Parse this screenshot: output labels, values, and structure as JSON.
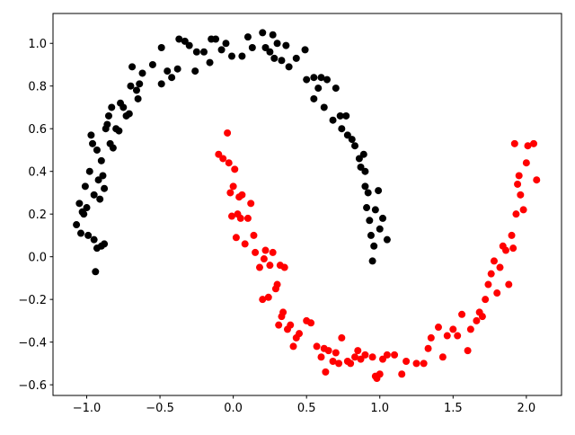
{
  "chart_data": {
    "type": "scatter",
    "xlim": [
      -1.23,
      2.24
    ],
    "ylim": [
      -0.65,
      1.14
    ],
    "xticks": [
      {
        "value": -1.0,
        "label": "−1.0"
      },
      {
        "value": -0.5,
        "label": "−0.5"
      },
      {
        "value": 0.0,
        "label": "0.0"
      },
      0.5,
      {
        "value": 1.0,
        "label": "1.0"
      },
      1.5,
      {
        "value": 2.0,
        "label": "2.0"
      }
    ],
    "yticks": [
      {
        "value": -0.6,
        "label": "−0.6"
      },
      {
        "value": -0.4,
        "label": "−0.4"
      },
      {
        "value": -0.2,
        "label": "−0.2"
      },
      {
        "value": 0.0,
        "label": "0.0"
      },
      0.2,
      0.4,
      0.6,
      0.8,
      {
        "value": 1.0,
        "label": "1.0"
      }
    ],
    "series": [
      {
        "color": "#000000",
        "x": [
          -1.07,
          -1.05,
          -1.04,
          -1.03,
          -1.02,
          -1.01,
          -1.0,
          -0.99,
          -0.98,
          -0.97,
          -0.96,
          -0.95,
          -0.95,
          -0.94,
          -0.93,
          -0.93,
          -0.92,
          -0.91,
          -0.9,
          -0.9,
          -0.89,
          -0.88,
          -0.88,
          -0.87,
          -0.86,
          -0.85,
          -0.84,
          -0.83,
          -0.82,
          -0.8,
          -0.78,
          -0.77,
          -0.75,
          -0.73,
          -0.71,
          -0.7,
          -0.69,
          -0.66,
          -0.65,
          -0.64,
          -0.62,
          -0.55,
          -0.49,
          -0.49,
          -0.45,
          -0.42,
          -0.38,
          -0.37,
          -0.33,
          -0.3,
          -0.26,
          -0.25,
          -0.2,
          -0.16,
          -0.15,
          -0.12,
          -0.08,
          -0.05,
          -0.01,
          0.06,
          0.1,
          0.13,
          0.2,
          0.22,
          0.25,
          0.27,
          0.28,
          0.3,
          0.33,
          0.36,
          0.38,
          0.43,
          0.49,
          0.5,
          0.55,
          0.55,
          0.58,
          0.6,
          0.62,
          0.64,
          0.68,
          0.7,
          0.73,
          0.74,
          0.77,
          0.78,
          0.81,
          0.83,
          0.86,
          0.87,
          0.89,
          0.9,
          0.9,
          0.91,
          0.92,
          0.93,
          0.94,
          0.95,
          0.96,
          0.97,
          0.99,
          1.0,
          1.02,
          1.05
        ],
        "y": [
          0.15,
          0.25,
          0.11,
          0.21,
          0.2,
          0.33,
          0.23,
          0.1,
          0.4,
          0.57,
          0.53,
          0.29,
          0.08,
          -0.07,
          0.04,
          0.5,
          0.36,
          0.27,
          0.05,
          0.45,
          0.38,
          0.06,
          0.32,
          0.6,
          0.62,
          0.66,
          0.53,
          0.7,
          0.51,
          0.6,
          0.59,
          0.72,
          0.7,
          0.66,
          0.67,
          0.8,
          0.89,
          0.78,
          0.74,
          0.81,
          0.86,
          0.9,
          0.98,
          0.81,
          0.87,
          0.84,
          0.88,
          1.02,
          1.01,
          0.99,
          0.87,
          0.96,
          0.96,
          0.91,
          1.02,
          1.02,
          0.97,
          1.0,
          0.94,
          0.94,
          1.03,
          0.98,
          1.05,
          0.98,
          0.96,
          1.04,
          0.93,
          1.0,
          0.92,
          0.99,
          0.89,
          0.93,
          0.97,
          0.83,
          0.74,
          0.84,
          0.79,
          0.84,
          0.7,
          0.83,
          0.64,
          0.79,
          0.66,
          0.6,
          0.66,
          0.57,
          0.55,
          0.52,
          0.46,
          0.42,
          0.48,
          0.4,
          0.33,
          0.23,
          0.3,
          0.17,
          0.1,
          -0.02,
          0.05,
          0.22,
          0.31,
          0.13,
          0.18,
          0.08
        ]
      },
      {
        "color": "#ff0000",
        "x": [
          -0.1,
          -0.07,
          -0.04,
          -0.03,
          -0.02,
          -0.01,
          0.0,
          0.01,
          0.02,
          0.03,
          0.04,
          0.05,
          0.06,
          0.08,
          0.1,
          0.12,
          0.14,
          0.15,
          0.18,
          0.2,
          0.21,
          0.22,
          0.24,
          0.25,
          0.27,
          0.29,
          0.3,
          0.31,
          0.32,
          0.33,
          0.34,
          0.35,
          0.37,
          0.39,
          0.41,
          0.43,
          0.45,
          0.5,
          0.53,
          0.57,
          0.6,
          0.62,
          0.63,
          0.65,
          0.68,
          0.7,
          0.72,
          0.74,
          0.78,
          0.8,
          0.83,
          0.85,
          0.87,
          0.9,
          0.95,
          0.97,
          0.98,
          1.0,
          1.02,
          1.05,
          1.1,
          1.15,
          1.18,
          1.25,
          1.3,
          1.33,
          1.35,
          1.4,
          1.43,
          1.46,
          1.5,
          1.53,
          1.56,
          1.6,
          1.62,
          1.66,
          1.68,
          1.7,
          1.72,
          1.74,
          1.76,
          1.78,
          1.8,
          1.82,
          1.84,
          1.86,
          1.88,
          1.9,
          1.91,
          1.93,
          1.94,
          1.95,
          1.96,
          1.98,
          2.0,
          2.01,
          2.05,
          2.07,
          1.92
        ],
        "y": [
          0.48,
          0.46,
          0.58,
          0.44,
          0.3,
          0.19,
          0.33,
          0.41,
          0.09,
          0.2,
          0.28,
          0.18,
          0.29,
          0.06,
          0.18,
          0.25,
          0.1,
          0.02,
          -0.05,
          -0.2,
          -0.01,
          0.03,
          -0.19,
          -0.04,
          0.02,
          -0.15,
          -0.13,
          -0.32,
          -0.04,
          -0.28,
          -0.26,
          -0.05,
          -0.34,
          -0.32,
          -0.42,
          -0.38,
          -0.36,
          -0.3,
          -0.31,
          -0.42,
          -0.47,
          -0.43,
          -0.54,
          -0.44,
          -0.49,
          -0.45,
          -0.5,
          -0.38,
          -0.49,
          -0.5,
          -0.47,
          -0.44,
          -0.48,
          -0.46,
          -0.47,
          -0.56,
          -0.57,
          -0.55,
          -0.48,
          -0.46,
          -0.46,
          -0.55,
          -0.49,
          -0.5,
          -0.5,
          -0.43,
          -0.38,
          -0.33,
          -0.47,
          -0.37,
          -0.34,
          -0.37,
          -0.27,
          -0.44,
          -0.34,
          -0.3,
          -0.26,
          -0.28,
          -0.2,
          -0.13,
          -0.08,
          -0.02,
          -0.17,
          -0.05,
          0.05,
          0.03,
          -0.13,
          0.1,
          0.04,
          0.2,
          0.34,
          0.38,
          0.29,
          0.22,
          0.44,
          0.52,
          0.53,
          0.36,
          0.53
        ]
      }
    ]
  }
}
